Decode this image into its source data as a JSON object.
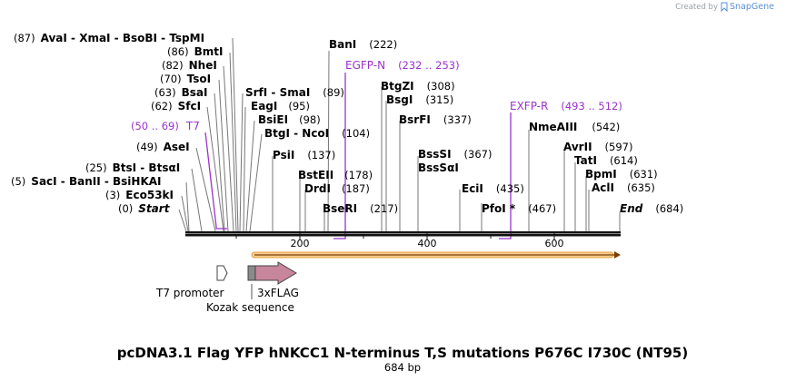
{
  "credit": {
    "created_by": "Created by",
    "brand": "SnapGene"
  },
  "sequence": {
    "title": "pcDNA3.1 Flag YFP hNKCC1 N-terminus T,S mutations P676C I730C (NT95)",
    "length_text": "684 bp"
  },
  "ruler": {
    "ticks": [
      {
        "label": "200"
      },
      {
        "label": "400"
      },
      {
        "label": "600"
      }
    ]
  },
  "sites": [
    {
      "pos": "(87)",
      "name": "AvaI  - XmaI  - BsoBI  - TspMI"
    },
    {
      "pos": "(86)",
      "name": "BmtI"
    },
    {
      "pos": "(82)",
      "name": "NheI"
    },
    {
      "pos": "(70)",
      "name": "TsoI"
    },
    {
      "pos": "(63)",
      "name": "BsaI"
    },
    {
      "pos": "(62)",
      "name": "SfcI"
    },
    {
      "pos": "(49)",
      "name": "AseI"
    },
    {
      "pos": "(25)",
      "name": "BtsI  - BtsαI"
    },
    {
      "pos": "(5)",
      "name": "SacI  - BanII  - BsiHKAI"
    },
    {
      "pos": "(3)",
      "name": "Eco53kI"
    },
    {
      "pos": "(0)",
      "name": "Start"
    },
    {
      "name": "SrfI  - SmaI",
      "pos": "(89)"
    },
    {
      "name": "EagI",
      "pos": "(95)"
    },
    {
      "name": "BsiEI",
      "pos": "(98)"
    },
    {
      "name": "BtgI  - NcoI",
      "pos": "(104)"
    },
    {
      "name": "PsiI",
      "pos": "(137)"
    },
    {
      "name": "BstEII",
      "pos": "(178)"
    },
    {
      "name": "DrdI",
      "pos": "(187)"
    },
    {
      "name": "BseRI",
      "pos": "(217)"
    },
    {
      "name": "BanI",
      "pos": "(222)"
    },
    {
      "name": "BtgZI",
      "pos": "(308)"
    },
    {
      "name": "BsgI",
      "pos": "(315)"
    },
    {
      "name": "BsrFI",
      "pos": "(337)"
    },
    {
      "name": "BssSI",
      "pos": "(367)"
    },
    {
      "name": "BssSαI",
      "pos": ""
    },
    {
      "name": "EciI",
      "pos": "(435)"
    },
    {
      "name": "PfoI *",
      "pos": "(467)"
    },
    {
      "name": "NmeAIII",
      "pos": "(542)"
    },
    {
      "name": "AvrII",
      "pos": "(597)"
    },
    {
      "name": "TatI",
      "pos": "(614)"
    },
    {
      "name": "BpmI",
      "pos": "(631)"
    },
    {
      "name": "AclI",
      "pos": "(635)"
    },
    {
      "name": "End",
      "pos": "(684)"
    }
  ],
  "primers": [
    {
      "name": "T7",
      "range": "(50 .. 69)"
    },
    {
      "name": "EGFP-N",
      "range": "(232 .. 253)"
    },
    {
      "name": "EXFP-R",
      "range": "(493 .. 512)"
    }
  ],
  "features": [
    {
      "name": "T7 promoter"
    },
    {
      "name": "3xFLAG"
    },
    {
      "name": "Kozak sequence"
    }
  ],
  "colors": {
    "primer": "#9933cc",
    "orf": "#f0a030",
    "flag": "#c8869c",
    "kozak": "#888888"
  }
}
